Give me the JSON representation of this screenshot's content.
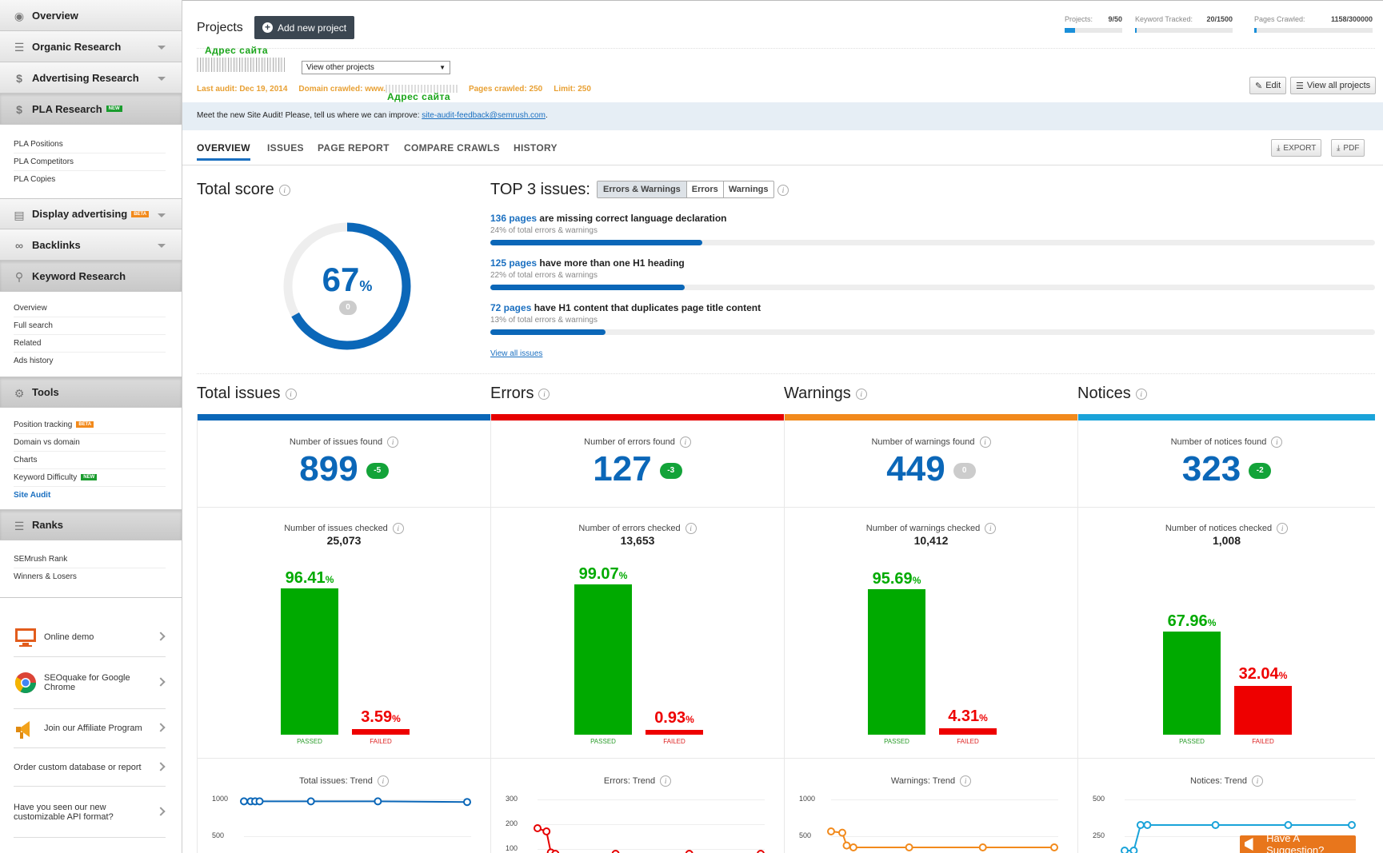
{
  "sidebar": {
    "nav": [
      {
        "label": "Overview",
        "icon": "globe-icon"
      },
      {
        "label": "Organic Research",
        "icon": "list-icon"
      },
      {
        "label": "Advertising Research",
        "icon": "dollar-icon"
      },
      {
        "label": "PLA Research",
        "icon": "dollar-icon",
        "badge": "NEW"
      },
      {
        "label": "Display advertising",
        "icon": "stack-icon",
        "badge": "BETA"
      },
      {
        "label": "Backlinks",
        "icon": "link-icon"
      },
      {
        "label": "Keyword Research",
        "icon": "search-icon"
      },
      {
        "label": "Tools",
        "icon": "gears-icon"
      },
      {
        "label": "Ranks",
        "icon": "list-icon"
      }
    ],
    "pla_sub": [
      "PLA Positions",
      "PLA Competitors",
      "PLA Copies"
    ],
    "keyword_sub": [
      "Overview",
      "Full search",
      "Related",
      "Ads history"
    ],
    "tools_sub": [
      {
        "label": "Position tracking",
        "badge": "BETA"
      },
      {
        "label": "Domain vs domain"
      },
      {
        "label": "Charts"
      },
      {
        "label": "Keyword Difficulty",
        "badge": "NEW"
      },
      {
        "label": "Site Audit"
      }
    ],
    "ranks_sub": [
      "SEMrush Rank",
      "Winners & Losers"
    ],
    "promos": [
      {
        "label": "Online demo",
        "icon": "monitor-icon"
      },
      {
        "label": "SEOquake for Google Chrome",
        "icon": "chrome-icon"
      },
      {
        "label": "Join our Affiliate Program",
        "icon": "megaphone-icon"
      },
      {
        "label": "Order custom database or report"
      },
      {
        "label": "Have you seen our new customizable API format?"
      }
    ]
  },
  "header": {
    "title": "Projects",
    "add_button": "Add new project",
    "site_label": "Адрес сайта",
    "site_label_2": "Адрес сайта",
    "project_select": "View other projects",
    "audit_meta": {
      "last_audit": "Last audit: Dec 19, 2014",
      "domain": "Domain crawled: www.",
      "pages": "Pages crawled: 250",
      "limit": "Limit: 250"
    },
    "edit_btn": "Edit",
    "view_all_btn": "View all projects",
    "limits": [
      {
        "label": "Projects:",
        "value": "9/50",
        "fraction": 0.18
      },
      {
        "label": "Keyword Tracked:",
        "value": "20/1500",
        "fraction": 0.013
      },
      {
        "label": "Pages Crawled:",
        "value": "1158/300000",
        "fraction": 0.004
      }
    ]
  },
  "banner": {
    "text": "Meet the new Site Audit! Please, tell us where we can improve:",
    "link": "site-audit-feedback@semrush.com",
    "end": "."
  },
  "tabs": [
    "OVERVIEW",
    "ISSUES",
    "PAGE REPORT",
    "COMPARE CRAWLS",
    "HISTORY"
  ],
  "actions": {
    "export": "EXPORT",
    "pdf": "PDF"
  },
  "score": {
    "title": "Total score",
    "value": "67",
    "unit": "%",
    "delta": "0",
    "fraction": 0.67
  },
  "top3": {
    "title": "TOP 3 issues:",
    "filters": [
      "Errors & Warnings",
      "Errors",
      "Warnings"
    ],
    "items": [
      {
        "count": "136 pages",
        "text": "are missing correct language declaration",
        "sub": "24% of total errors & warnings",
        "fraction": 0.24
      },
      {
        "count": "125 pages",
        "text": "have more than one H1 heading",
        "sub": "22% of total errors & warnings",
        "fraction": 0.22
      },
      {
        "count": "72 pages",
        "text": "have H1 content that duplicates page title content",
        "sub": "13% of total errors & warnings",
        "fraction": 0.13
      }
    ],
    "view_all": "View all issues"
  },
  "columns": [
    {
      "title": "Total issues",
      "color": "#0b67b8",
      "found_label": "Number of issues found",
      "found": "899",
      "delta": "-5",
      "delta_color": "green",
      "checked_label": "Number of issues checked",
      "checked": "25,073",
      "passed": 96.41,
      "failed": 3.59,
      "passed_label": "96.41",
      "failed_label": "3.59",
      "trend_title": "Total issues: Trend",
      "trend_ticks": [
        "1000",
        "500"
      ]
    },
    {
      "title": "Errors",
      "color": "#e60000",
      "found_label": "Number of errors found",
      "found": "127",
      "delta": "-3",
      "delta_color": "green",
      "checked_label": "Number of errors checked",
      "checked": "13,653",
      "passed": 99.07,
      "failed": 0.93,
      "passed_label": "99.07",
      "failed_label": "0.93",
      "trend_title": "Errors: Trend",
      "trend_ticks": [
        "300",
        "200",
        "100"
      ]
    },
    {
      "title": "Warnings",
      "color": "#f28a1c",
      "found_label": "Number of warnings found",
      "found": "449",
      "delta": "0",
      "delta_color": "grey",
      "checked_label": "Number of warnings checked",
      "checked": "10,412",
      "passed": 95.69,
      "failed": 4.31,
      "passed_label": "95.69",
      "failed_label": "4.31",
      "trend_title": "Warnings: Trend",
      "trend_ticks": [
        "1000",
        "500"
      ]
    },
    {
      "title": "Notices",
      "color": "#1aa3d9",
      "found_label": "Number of notices found",
      "found": "323",
      "delta": "-2",
      "delta_color": "green",
      "checked_label": "Number of notices checked",
      "checked": "1,008",
      "passed": 67.96,
      "failed": 32.04,
      "passed_label": "67.96",
      "failed_label": "32.04",
      "trend_title": "Notices: Trend",
      "trend_ticks": [
        "500",
        "250"
      ]
    }
  ],
  "bar_labels": {
    "passed": "PASSED",
    "failed": "FAILED",
    "unit": "%"
  },
  "suggestion": "Have A Suggestion?",
  "colors": {
    "passed": "#00aa00",
    "failed": "#ee0000",
    "link": "#1a6fc0",
    "orange_meta": "#e8a033"
  }
}
